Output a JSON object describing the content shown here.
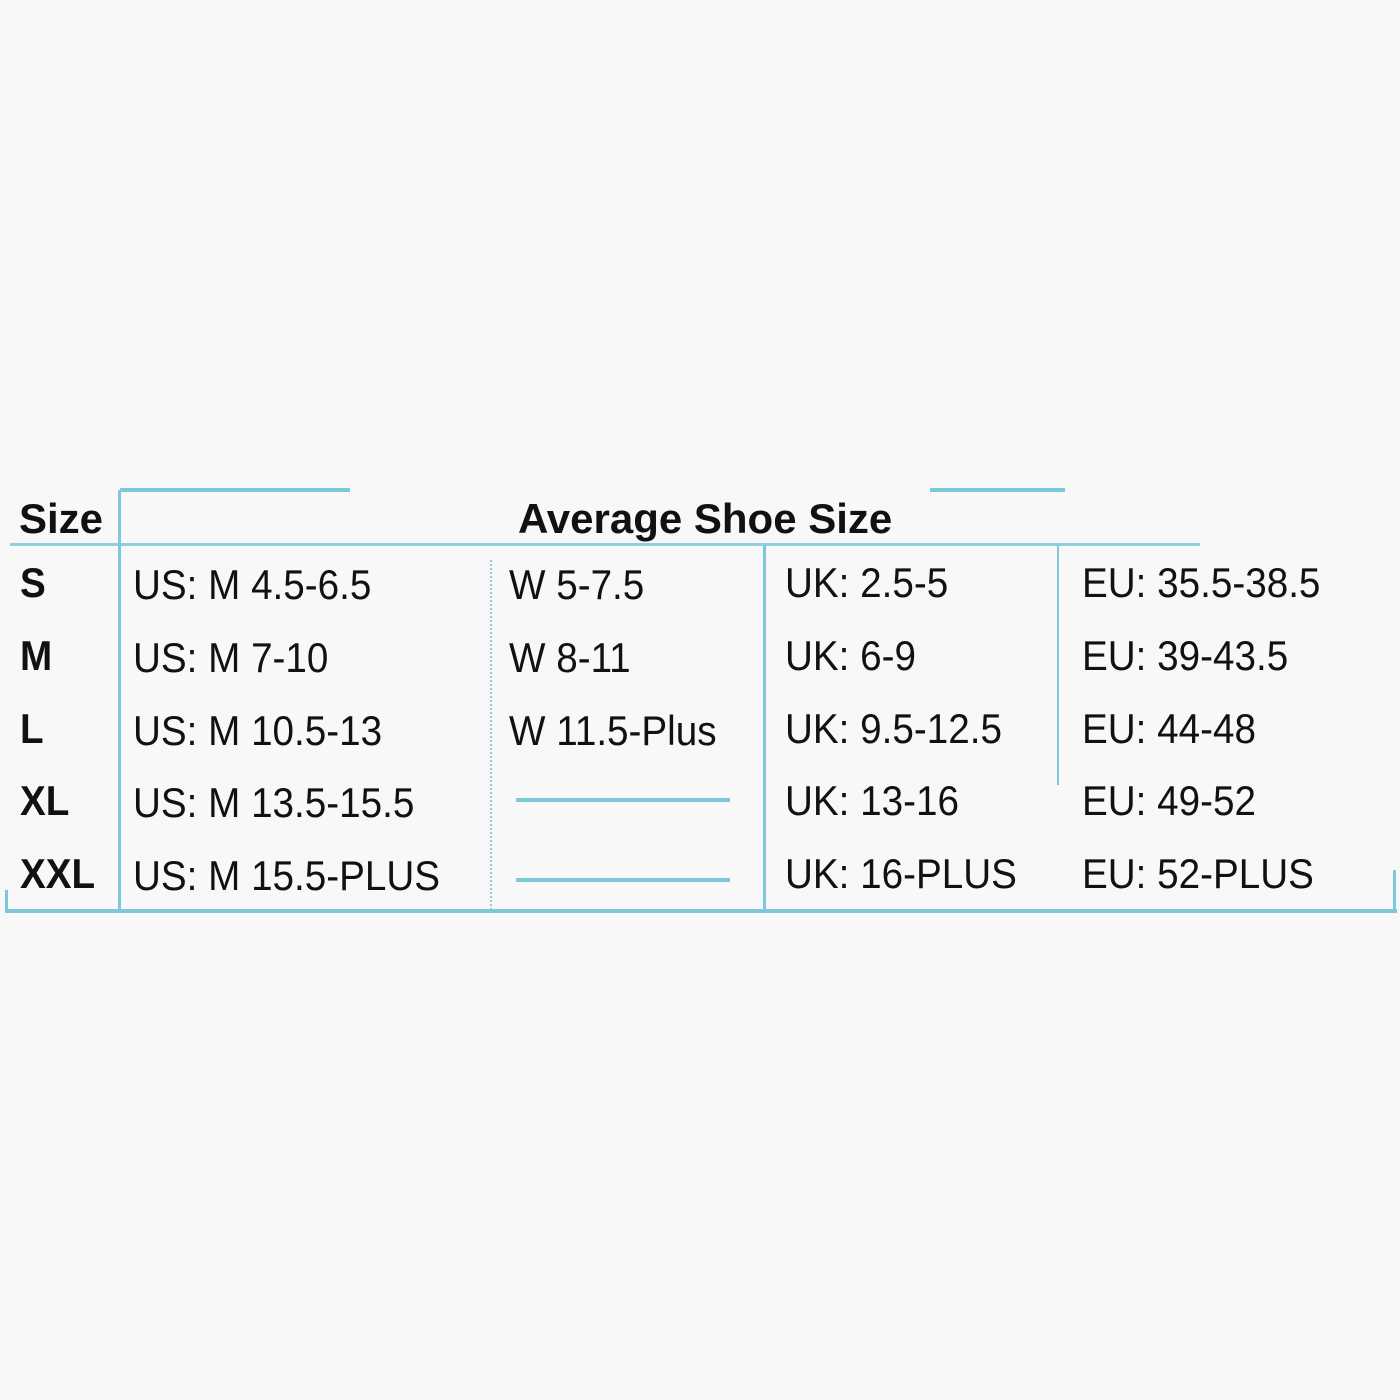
{
  "table": {
    "size_header": "Size",
    "main_header": "Average Shoe Size",
    "border_color": "#7ec8dc",
    "rows": [
      {
        "size": "S",
        "us": "US: M 4.5-6.5",
        "w": "W 5-7.5",
        "uk": "UK: 2.5-5",
        "eu": "EU: 35.5-38.5"
      },
      {
        "size": "M",
        "us": "US: M 7-10",
        "w": "W 8-11",
        "uk": "UK: 6-9",
        "eu": "EU: 39-43.5"
      },
      {
        "size": "L",
        "us": "US: M 10.5-13",
        "w": "W 11.5-Plus",
        "uk": "UK: 9.5-12.5",
        "eu": "EU: 44-48"
      },
      {
        "size": "XL",
        "us": "US: M 13.5-15.5",
        "w": null,
        "uk": "UK: 13-16",
        "eu": "EU: 49-52"
      },
      {
        "size": "XXL",
        "us": "US: M 15.5-PLUS",
        "w": null,
        "uk": "UK: 16-PLUS",
        "eu": "EU: 52-PLUS"
      }
    ]
  }
}
